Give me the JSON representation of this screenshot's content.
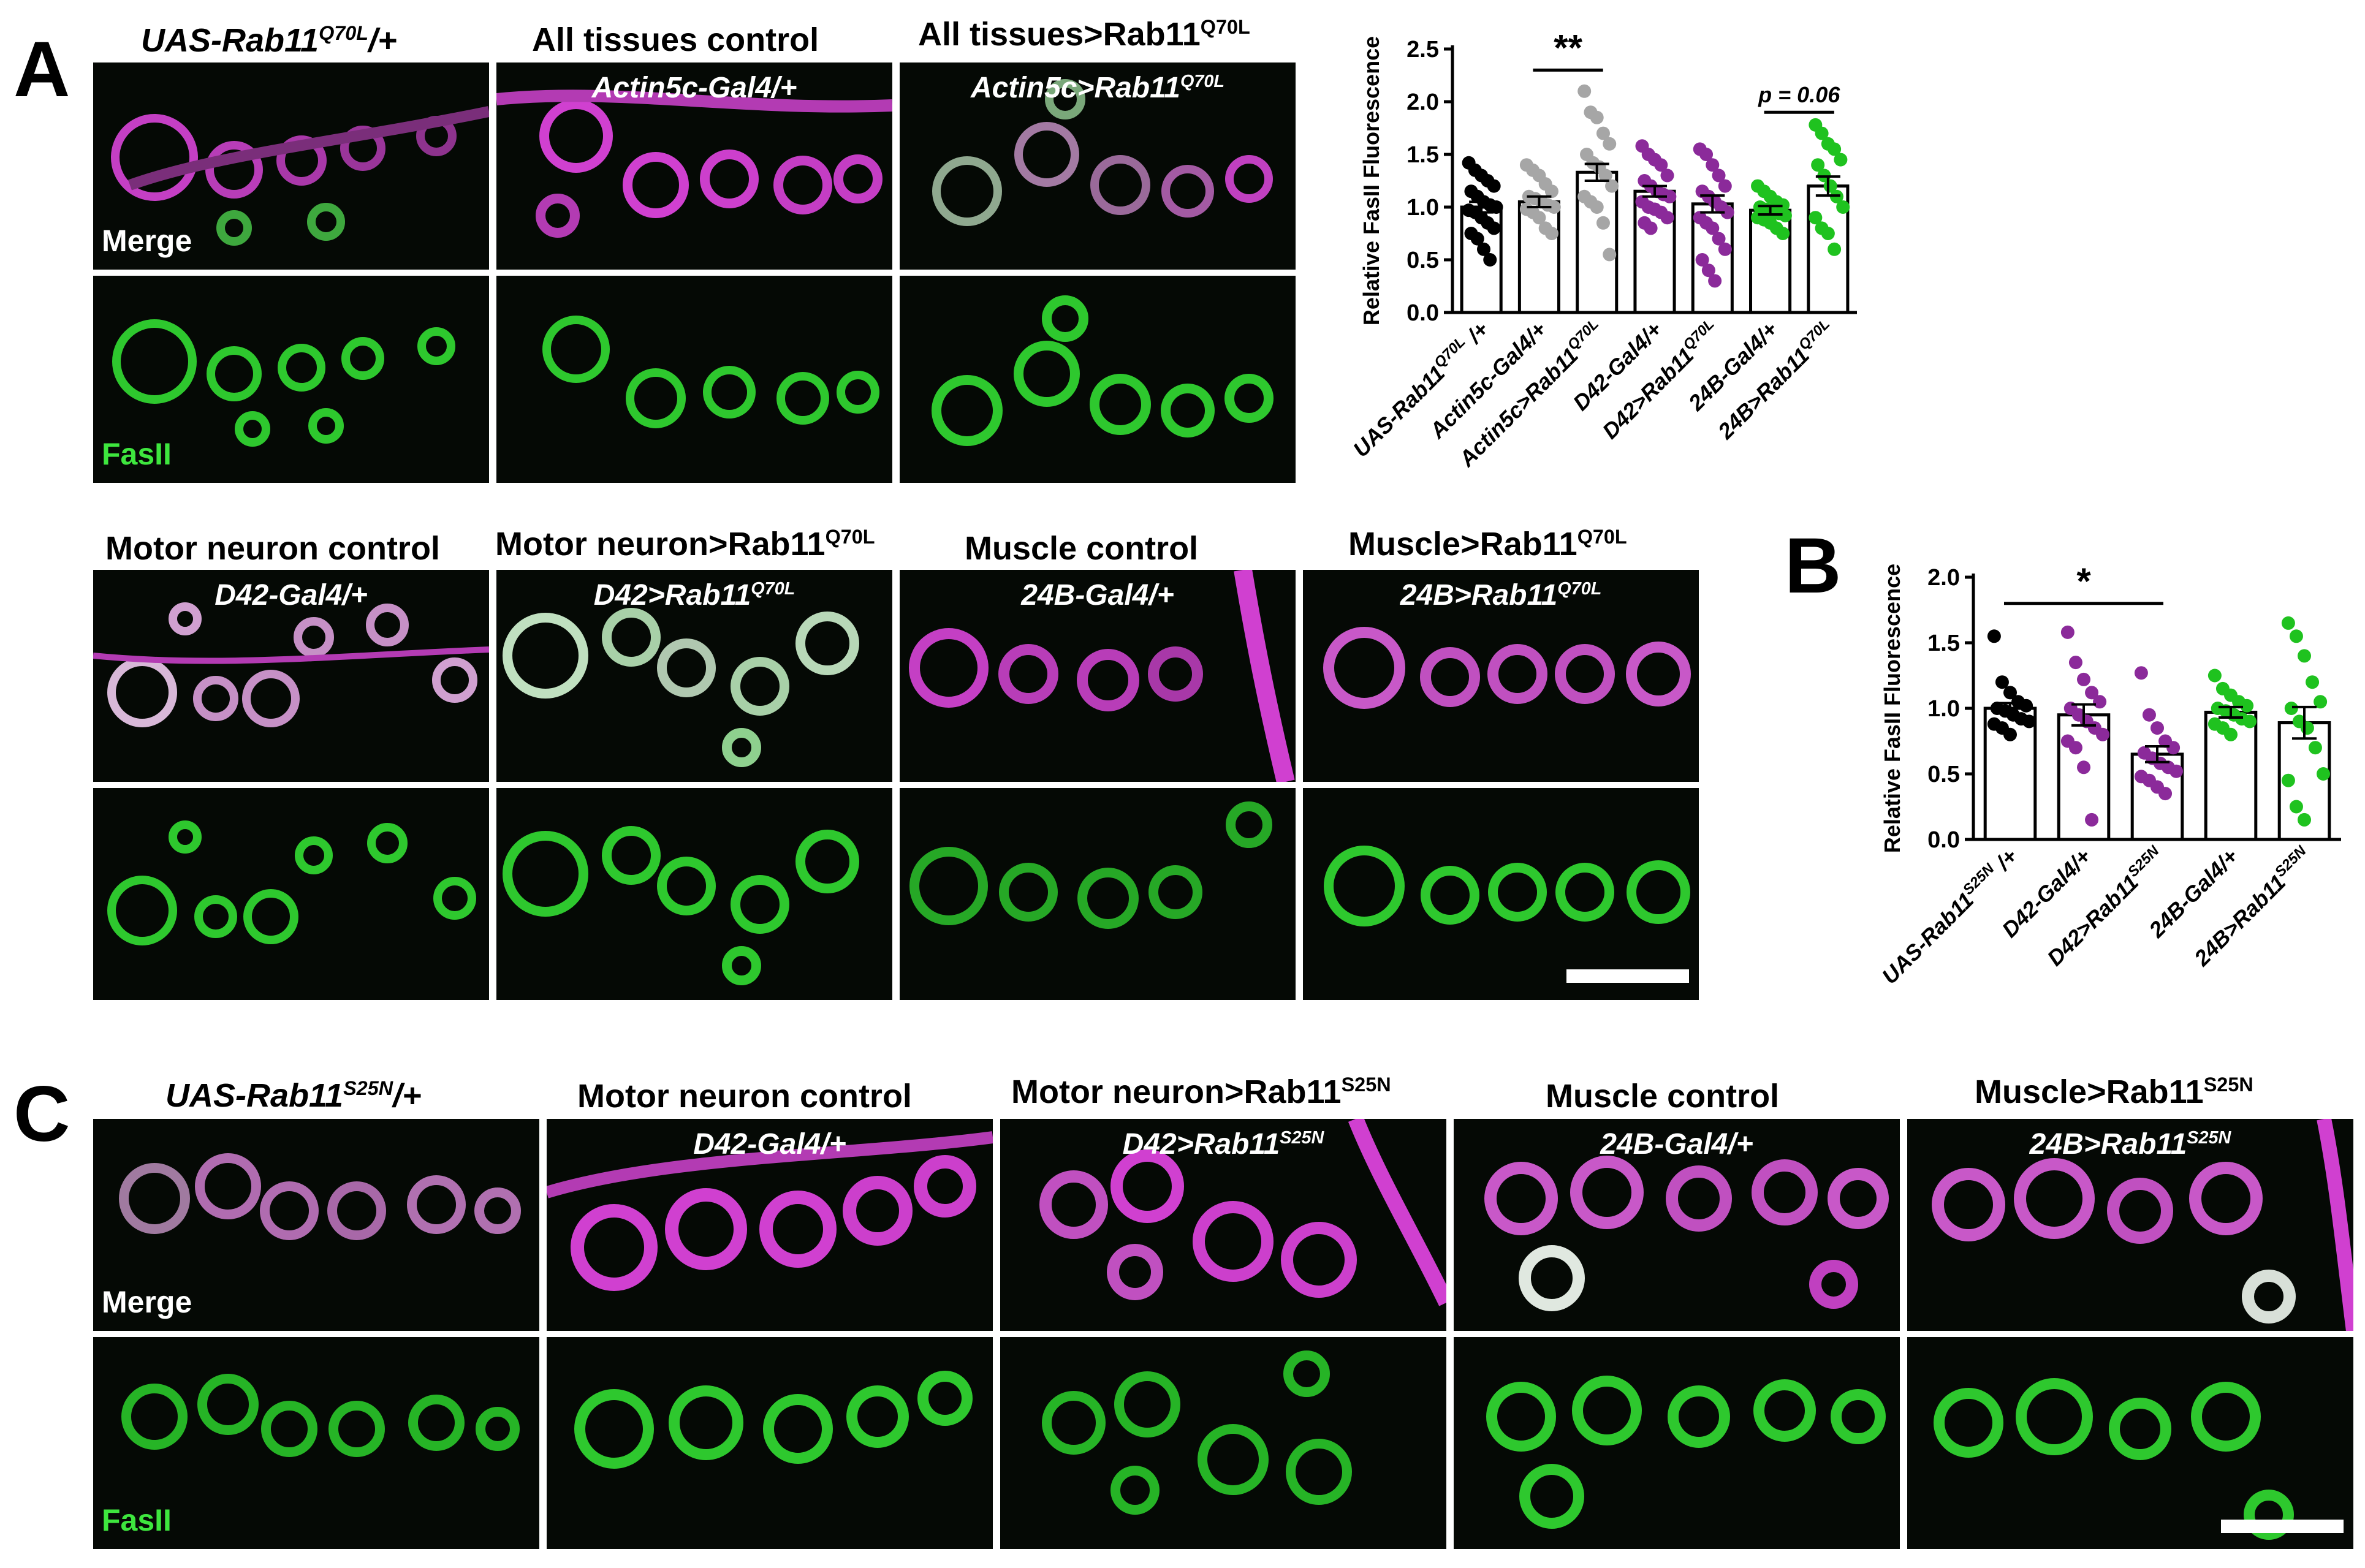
{
  "panel_letters": {
    "A": "A",
    "B": "B",
    "C": "C"
  },
  "panel_A": {
    "top_row": [
      {
        "header": "UAS-Rab11",
        "header_sup": "Q70L",
        "header_suffix": "/+",
        "header_italic": true,
        "genotype": "",
        "genotype_sup": ""
      },
      {
        "header": "All tissues control",
        "header_sup": "",
        "header_suffix": "",
        "header_italic": false,
        "genotype": "Actin5c-Gal4/+",
        "genotype_sup": ""
      },
      {
        "header": "All tissues>Rab11",
        "header_sup": "Q70L",
        "header_suffix": "",
        "header_italic": false,
        "genotype": "Actin5c>Rab11",
        "genotype_sup": "Q70L"
      }
    ],
    "bottom_row": [
      {
        "header": "Motor neuron control",
        "header_sup": "",
        "genotype": "D42-Gal4/+",
        "genotype_sup": ""
      },
      {
        "header": "Motor neuron>Rab11",
        "header_sup": "Q70L",
        "genotype": "D42>Rab11",
        "genotype_sup": "Q70L"
      },
      {
        "header": "Muscle control",
        "header_sup": "",
        "genotype": "24B-Gal4/+",
        "genotype_sup": ""
      },
      {
        "header": "Muscle>Rab11",
        "header_sup": "Q70L",
        "genotype": "24B>Rab11",
        "genotype_sup": "Q70L"
      }
    ],
    "channel_merge": "Merge",
    "channel_fasii": "FasII"
  },
  "panel_C": {
    "columns": [
      {
        "header": "UAS-Rab11",
        "header_sup": "S25N",
        "header_suffix": "/+",
        "header_italic": true,
        "genotype": "",
        "genotype_sup": ""
      },
      {
        "header": "Motor neuron control",
        "header_sup": "",
        "header_suffix": "",
        "header_italic": false,
        "genotype": "D42-Gal4/+",
        "genotype_sup": ""
      },
      {
        "header": "Motor neuron>Rab11",
        "header_sup": "S25N",
        "header_suffix": "",
        "header_italic": false,
        "genotype": "D42>Rab11",
        "genotype_sup": "S25N"
      },
      {
        "header": "Muscle control",
        "header_sup": "",
        "header_suffix": "",
        "header_italic": false,
        "genotype": "24B-Gal4/+",
        "genotype_sup": ""
      },
      {
        "header": "Muscle>Rab11",
        "header_sup": "S25N",
        "header_suffix": "",
        "header_italic": false,
        "genotype": "24B>Rab11",
        "genotype_sup": "S25N"
      }
    ],
    "channel_merge": "Merge",
    "channel_fasii": "FasII"
  },
  "colors": {
    "magenta": "#d23ad2",
    "green": "#32d232",
    "black": "#000000",
    "grey": "#a6a6a6",
    "purple": "#8b2a9a",
    "bright_green": "#1fc21f"
  },
  "chart_data": [
    {
      "type": "bar",
      "id": "A",
      "ylabel": "Relative FasII Fluorescence",
      "ylim": [
        0,
        2.5
      ],
      "yticks": [
        "0.0",
        "0.5",
        "1.0",
        "1.5",
        "2.0",
        "2.5"
      ],
      "categories": [
        {
          "label": "UAS-Rab11",
          "sup": "Q70L",
          "suffix": " /+"
        },
        {
          "label": "Actin5c-Gal4/+",
          "sup": "",
          "suffix": ""
        },
        {
          "label": "Actin5c>Rab11",
          "sup": "Q70L",
          "suffix": ""
        },
        {
          "label": "D42-Gal4/+",
          "sup": "",
          "suffix": ""
        },
        {
          "label": "D42>Rab11",
          "sup": "Q70L",
          "suffix": ""
        },
        {
          "label": "24B-Gal4/+",
          "sup": "",
          "suffix": ""
        },
        {
          "label": "24B>Rab11",
          "sup": "Q70L",
          "suffix": ""
        }
      ],
      "values": [
        1.0,
        1.05,
        1.33,
        1.15,
        1.03,
        0.97,
        1.2
      ],
      "sem": [
        0.05,
        0.05,
        0.08,
        0.05,
        0.08,
        0.04,
        0.09
      ],
      "point_colors": [
        "#000000",
        "#a6a6a6",
        "#a6a6a6",
        "#8b2a9a",
        "#8b2a9a",
        "#1fc21f",
        "#1fc21f"
      ],
      "points": [
        [
          1.42,
          1.35,
          1.3,
          1.25,
          1.2,
          1.15,
          1.1,
          1.05,
          1.02,
          1.0,
          0.97,
          0.95,
          0.9,
          0.85,
          0.8,
          0.75,
          0.7,
          0.6,
          0.5
        ],
        [
          1.4,
          1.35,
          1.3,
          1.22,
          1.15,
          1.1,
          1.08,
          1.05,
          1.02,
          1.0,
          0.98,
          0.95,
          0.9,
          0.8,
          0.75
        ],
        [
          2.1,
          1.9,
          1.85,
          1.7,
          1.6,
          1.5,
          1.42,
          1.38,
          1.3,
          1.2,
          1.1,
          1.05,
          1.0,
          0.85,
          0.55
        ],
        [
          1.58,
          1.5,
          1.45,
          1.4,
          1.3,
          1.25,
          1.2,
          1.15,
          1.12,
          1.1,
          1.05,
          1.0,
          0.98,
          0.95,
          0.9,
          0.85,
          0.8
        ],
        [
          1.55,
          1.5,
          1.4,
          1.3,
          1.2,
          1.15,
          1.1,
          1.05,
          1.0,
          0.95,
          0.9,
          0.85,
          0.8,
          0.7,
          0.6,
          0.5,
          0.4,
          0.3
        ],
        [
          1.2,
          1.15,
          1.1,
          1.05,
          1.02,
          1.0,
          0.98,
          0.96,
          0.94,
          0.92,
          0.9,
          0.88,
          0.85,
          0.8,
          0.75
        ],
        [
          1.78,
          1.7,
          1.6,
          1.55,
          1.45,
          1.4,
          1.3,
          1.2,
          1.1,
          1.0,
          0.9,
          0.8,
          0.75,
          0.6
        ]
      ],
      "annotations": [
        {
          "from": 1,
          "to": 2,
          "y": 2.3,
          "text": "**"
        },
        {
          "from": 5,
          "to": 6,
          "y": 1.9,
          "text": "p = 0.06"
        }
      ]
    },
    {
      "type": "bar",
      "id": "B",
      "ylabel": "Relative FasII Fluorescence",
      "ylim": [
        0,
        2.0
      ],
      "yticks": [
        "0.0",
        "0.5",
        "1.0",
        "1.5",
        "2.0"
      ],
      "categories": [
        {
          "label": "UAS-Rab11",
          "sup": "S25N",
          "suffix": " /+"
        },
        {
          "label": "D42-Gal4/+",
          "sup": "",
          "suffix": ""
        },
        {
          "label": "D42>Rab11",
          "sup": "S25N",
          "suffix": ""
        },
        {
          "label": "24B-Gal4/+",
          "sup": "",
          "suffix": ""
        },
        {
          "label": "24B>Rab11",
          "sup": "S25N",
          "suffix": ""
        }
      ],
      "values": [
        1.0,
        0.95,
        0.65,
        0.97,
        0.89
      ],
      "sem": [
        0.04,
        0.08,
        0.06,
        0.04,
        0.12
      ],
      "point_colors": [
        "#000000",
        "#8b2a9a",
        "#8b2a9a",
        "#1fc21f",
        "#1fc21f"
      ],
      "points": [
        [
          1.55,
          1.2,
          1.12,
          1.05,
          1.02,
          1.0,
          0.98,
          0.95,
          0.92,
          0.9,
          0.88,
          0.85,
          0.8
        ],
        [
          1.58,
          1.35,
          1.22,
          1.12,
          1.05,
          1.0,
          0.95,
          0.9,
          0.85,
          0.8,
          0.75,
          0.7,
          0.55,
          0.15
        ],
        [
          1.27,
          0.95,
          0.85,
          0.75,
          0.7,
          0.66,
          0.62,
          0.58,
          0.55,
          0.52,
          0.48,
          0.45,
          0.4,
          0.35
        ],
        [
          1.25,
          1.15,
          1.1,
          1.05,
          1.02,
          1.0,
          0.98,
          0.95,
          0.92,
          0.9,
          0.88,
          0.85,
          0.8
        ],
        [
          1.65,
          1.55,
          1.4,
          1.2,
          1.05,
          1.0,
          0.9,
          0.85,
          0.7,
          0.5,
          0.45,
          0.25,
          0.15
        ]
      ],
      "annotations": [
        {
          "from": 0,
          "to": 2,
          "y": 1.8,
          "text": "*"
        }
      ]
    }
  ]
}
